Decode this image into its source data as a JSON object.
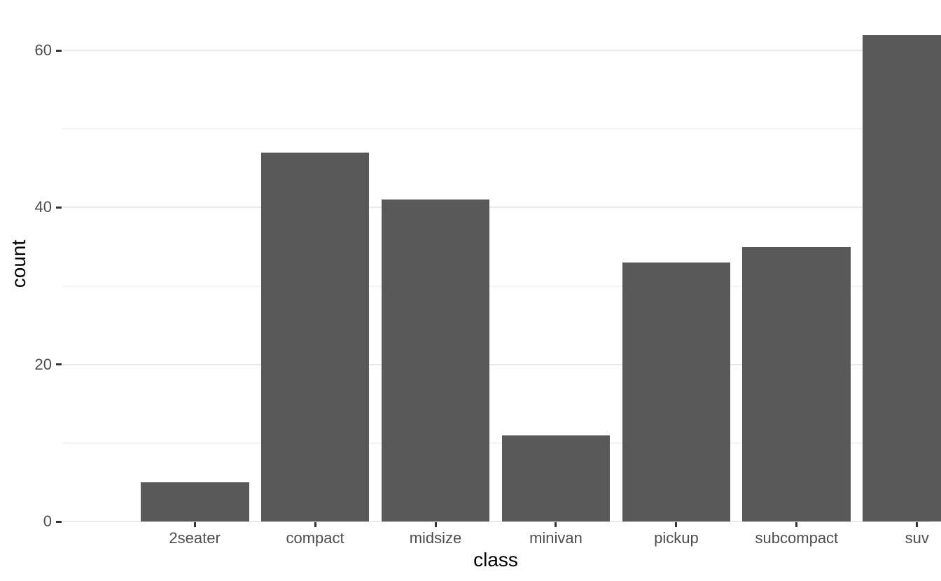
{
  "chart_data": {
    "type": "bar",
    "title": "",
    "xlabel": "class",
    "ylabel": "count",
    "categories": [
      "2seater",
      "compact",
      "midsize",
      "minivan",
      "pickup",
      "subcompact",
      "suv"
    ],
    "values": [
      5,
      47,
      41,
      11,
      33,
      35,
      62
    ],
    "series_name": "count",
    "ylim": [
      0,
      65.1
    ],
    "y_major_ticks": [
      0,
      20,
      40,
      60
    ],
    "y_minor_gridlines": [
      10,
      30,
      50
    ],
    "grid": "horizontal-only",
    "legend_position": "none",
    "bar_relative_width": 0.9,
    "colors": {
      "bar_fill": "#595959",
      "background": "#ffffff",
      "major_grid": "#e9e9e9",
      "minor_grid": "#f4f4f4",
      "tick_mark": "#333333",
      "tick_label": "#4d4d4d",
      "axis_title": "#000000"
    }
  }
}
